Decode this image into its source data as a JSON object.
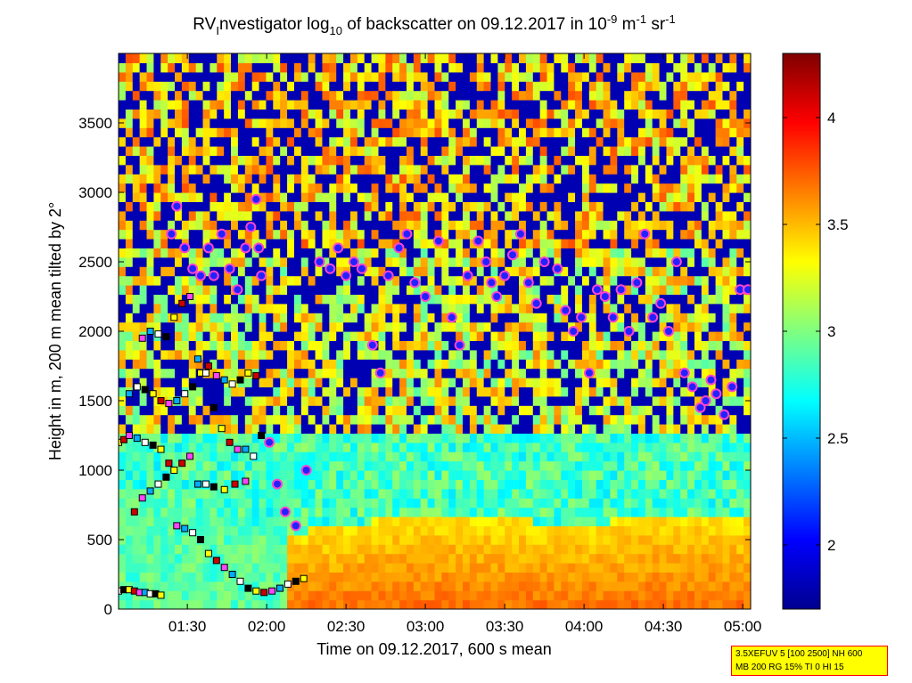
{
  "chart_data": {
    "type": "heatmap",
    "title": {
      "prefix": "RV",
      "sub1": "I",
      "mid": "nvestigator log",
      "sub2": "10",
      "mid2": " of backscatter on 09.12.2017 in 10",
      "sup1": "-9",
      "unit_m": " m",
      "sup2": "-1",
      "unit_sr": " sr",
      "sup3": "-1"
    },
    "xlabel": "Time on 09.12.2017, 600 s mean",
    "ylabel": "Height in m, 200 m mean tilted by 2°",
    "x_tick_labels": [
      "01:30",
      "02:00",
      "02:30",
      "03:00",
      "03:30",
      "04:00",
      "04:30",
      "05:00"
    ],
    "x_tick_minutes": [
      90,
      120,
      150,
      180,
      210,
      240,
      270,
      300
    ],
    "xlim_minutes": [
      64,
      303
    ],
    "y_ticks": [
      0,
      500,
      1000,
      1500,
      2000,
      2500,
      3000,
      3500
    ],
    "ylim": [
      0,
      4000
    ],
    "colorbar": {
      "ticks": [
        2,
        2.5,
        3,
        3.5,
        4
      ],
      "tick_labels": [
        "2",
        "2.5",
        "3",
        "3.5",
        "4"
      ],
      "range": [
        1.7,
        4.3
      ]
    },
    "surface_layer_height_by_time": {
      "x": [
        64,
        100,
        120,
        130,
        150,
        180,
        210,
        240,
        270,
        300
      ],
      "y": [
        900,
        700,
        600,
        550,
        600,
        700,
        650,
        600,
        700,
        650
      ]
    },
    "cloud_base_markers": {
      "x": [
        84,
        86,
        89,
        92,
        95,
        98,
        100,
        103,
        106,
        109,
        112,
        114,
        116,
        117,
        118,
        121,
        124,
        127,
        131,
        135,
        140,
        144,
        147,
        150,
        153,
        156,
        160,
        163,
        166,
        170,
        173,
        176,
        180,
        185,
        190,
        193,
        196,
        200,
        203,
        205,
        207,
        210,
        213,
        216,
        219,
        222,
        225,
        230,
        233,
        236,
        239,
        242,
        245,
        248,
        251,
        254,
        257,
        260,
        263,
        266,
        269,
        272,
        275,
        278,
        281,
        284,
        286,
        288,
        290,
        293,
        296,
        299,
        302
      ],
      "y": [
        2700,
        2900,
        2600,
        2450,
        2400,
        2600,
        2400,
        2700,
        2450,
        2300,
        2600,
        2750,
        2950,
        2600,
        2400,
        1200,
        900,
        700,
        600,
        1000,
        2500,
        2450,
        2600,
        2400,
        2500,
        2450,
        1900,
        1700,
        2400,
        2600,
        2700,
        2350,
        2250,
        2650,
        2100,
        1900,
        2400,
        2650,
        2500,
        2350,
        2250,
        2400,
        2550,
        2700,
        2350,
        2200,
        2500,
        2450,
        2150,
        2000,
        2100,
        1700,
        2300,
        2250,
        2100,
        2300,
        2000,
        2350,
        2700,
        2100,
        2200,
        2000,
        2500,
        1700,
        1600,
        1450,
        1500,
        1650,
        1550,
        1400,
        1600,
        2300,
        2300
      ]
    },
    "square_markers": {
      "x": [
        64,
        66,
        68,
        70,
        72,
        74,
        76,
        78,
        80,
        70,
        73,
        76,
        79,
        82,
        85,
        88,
        91,
        94,
        97,
        100,
        104,
        108,
        112,
        68,
        71,
        74,
        77,
        80,
        83,
        86,
        89,
        92,
        95,
        98,
        101,
        104,
        107,
        110,
        113,
        116,
        73,
        76,
        79,
        82,
        85,
        88,
        91,
        94,
        97,
        100,
        103,
        106,
        109,
        112,
        115,
        118,
        64,
        66,
        68,
        71,
        74,
        77,
        80,
        83,
        86,
        89,
        92,
        95,
        98,
        101,
        104,
        107,
        110,
        113,
        116,
        119,
        122,
        125,
        128,
        131,
        134
      ],
      "y": [
        130,
        140,
        140,
        130,
        120,
        120,
        110,
        110,
        100,
        700,
        800,
        850,
        900,
        950,
        1000,
        1050,
        1100,
        900,
        900,
        880,
        860,
        900,
        920,
        1550,
        1600,
        1580,
        1550,
        1500,
        1480,
        1500,
        1550,
        1600,
        1700,
        1750,
        1680,
        1650,
        1620,
        1650,
        1700,
        1680,
        1950,
        2000,
        1980,
        1960,
        2100,
        2200,
        2250,
        1800,
        1700,
        1450,
        1300,
        1200,
        1150,
        1150,
        1100,
        1250,
        1200,
        1220,
        1250,
        1230,
        1200,
        1180,
        1150,
        1050,
        600,
        580,
        550,
        500,
        400,
        350,
        300,
        250,
        200,
        150,
        130,
        120,
        130,
        150,
        180,
        200,
        220
      ],
      "fills": [
        "#ffffff",
        "#000000",
        "#ffff00",
        "#cc0000",
        "#ff44ff",
        "#00aaff"
      ]
    }
  },
  "info_box": {
    "line1": "3.5XEFUV 5 [100 2500] NH 600",
    "line2": "MB 200 RG 15% TI 0 HI 15"
  }
}
